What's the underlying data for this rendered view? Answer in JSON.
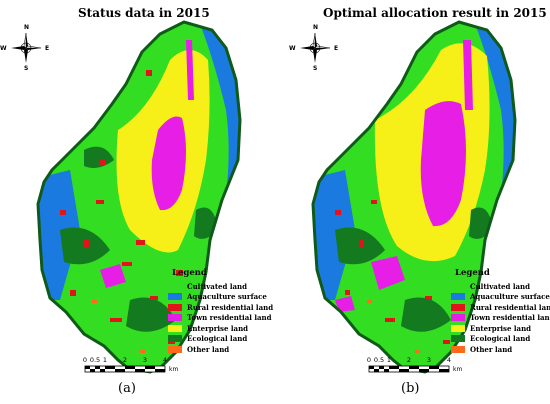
{
  "panels": [
    {
      "title": "Status data in 2015",
      "caption": "(a)"
    },
    {
      "title": "Optimal allocation result in 2015",
      "caption": "(b)"
    }
  ],
  "compass": {
    "n": "N",
    "s": "S",
    "e": "E",
    "w": "W"
  },
  "legend": {
    "title": "Legend",
    "items": [
      {
        "label": "Cultivated land",
        "color": "#33dd22"
      },
      {
        "label": "Aquaculture surface",
        "color": "#1a7ae0"
      },
      {
        "label": "Rural residential land",
        "color": "#e0141a"
      },
      {
        "label": "Town residential land",
        "color": "#e61ee6"
      },
      {
        "label": "Enterprise land",
        "color": "#f7f018"
      },
      {
        "label": "Ecological land",
        "color": "#137a1f"
      },
      {
        "label": "Other land",
        "color": "#ff6a1a"
      }
    ]
  },
  "scale": {
    "ticks": [
      "0",
      "0.5",
      "1",
      "2",
      "3",
      "4"
    ],
    "unit": "km"
  },
  "colors": {
    "outline": "#0f5a18",
    "background": "#ffffff"
  }
}
